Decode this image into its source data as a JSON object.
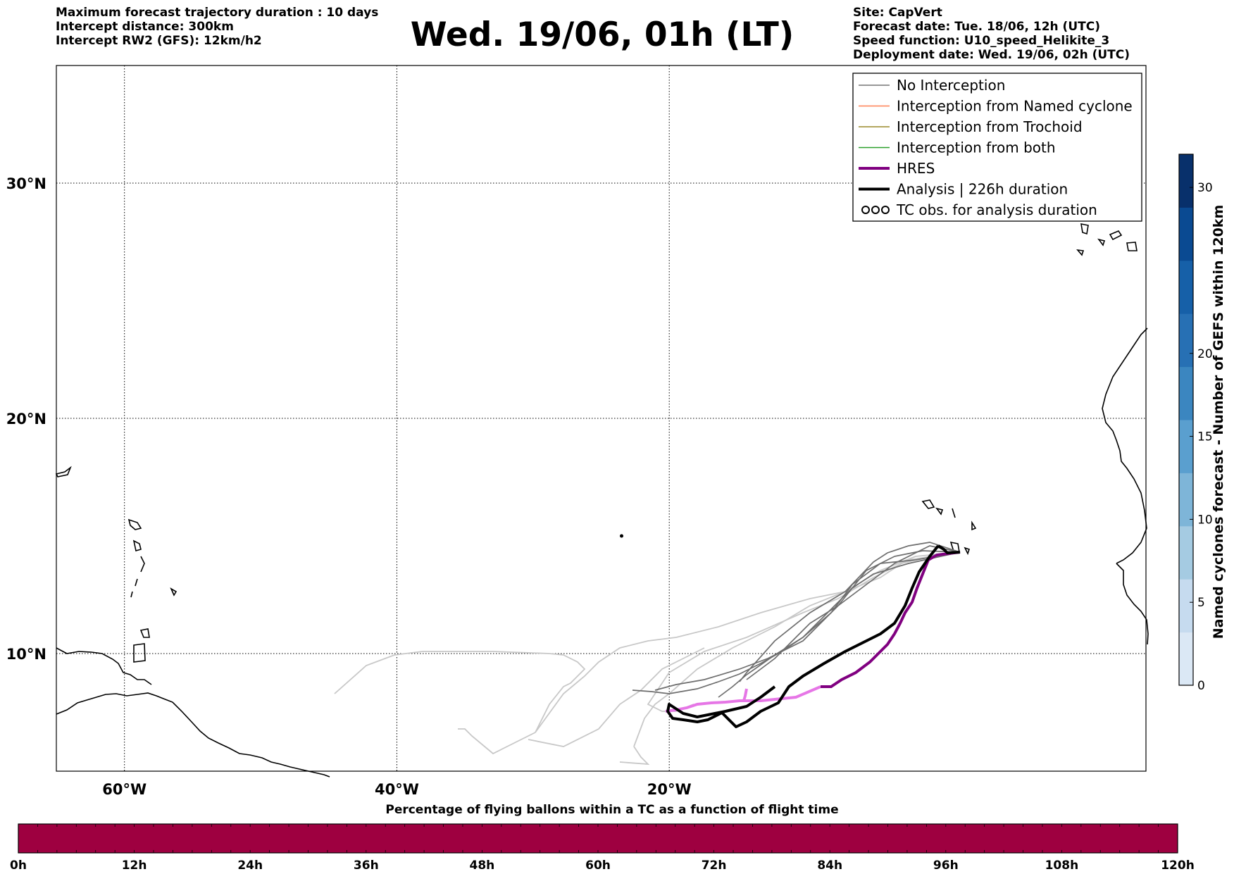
{
  "header": {
    "left": [
      "Maximum forecast trajectory duration : 10 days",
      "Intercept distance: 300km",
      "Intercept RW2 (GFS):  12km/h2"
    ],
    "title": "Wed. 19/06, 01h (LT)",
    "right": [
      "Site: CapVert",
      "Forecast date: Tue. 18/06, 12h (UTC)",
      "Speed function: U10_speed_Helikite_3",
      "Deployment date: Wed. 19/06, 02h (UTC)"
    ]
  },
  "map": {
    "lon_range": [
      -65,
      15
    ],
    "lat_range": [
      5,
      35
    ],
    "lat_ticks": [
      {
        "value": 30,
        "label": "30°N"
      },
      {
        "value": 20,
        "label": "20°N"
      },
      {
        "value": 10,
        "label": "10°N"
      }
    ],
    "lon_ticks": [
      {
        "value": -60,
        "label": "60°W"
      },
      {
        "value": -40,
        "label": "40°W"
      },
      {
        "value": -20,
        "label": "20°W"
      }
    ],
    "legend": [
      {
        "label": "No Interception",
        "color": "#777777",
        "style": "thin"
      },
      {
        "label": "Interception from Named cyclone",
        "color": "#ff7f50",
        "style": "thin"
      },
      {
        "label": "Interception from Trochoid",
        "color": "#9a8a2a",
        "style": "thin"
      },
      {
        "label": "Interception from both",
        "color": "#2ca02c",
        "style": "thin"
      },
      {
        "label": "HRES",
        "color": "#800080",
        "style": "thick"
      },
      {
        "label": "Analysis | 226h duration",
        "color": "#000000",
        "style": "thick"
      },
      {
        "label": "TC obs. for analysis duration",
        "color": "#000000",
        "style": "symbol"
      }
    ],
    "site": {
      "name": "CapVert",
      "lon": -23.5,
      "lat": 15.0
    }
  },
  "right_colorbar": {
    "label": "Named cyclones forecast - Number of GEFS within 120km",
    "ticks": [
      "0",
      "5",
      "10",
      "15",
      "20",
      "30"
    ],
    "tick_values": [
      0,
      5,
      10,
      15,
      20,
      30
    ],
    "max": 32,
    "colors": [
      "#dbe8f5",
      "#c6dbef",
      "#a5cbe2",
      "#7eb5d8",
      "#5a9fcf",
      "#3b86c0",
      "#2770b4",
      "#1660a8",
      "#0a4a92",
      "#08306b"
    ]
  },
  "bottom_colorbar": {
    "label": "Percentage of flying ballons within a TC as a function of flight time",
    "ticks": [
      "0h",
      "12h",
      "24h",
      "36h",
      "48h",
      "60h",
      "72h",
      "84h",
      "96h",
      "108h",
      "120h"
    ],
    "fill_color": "#9e0040"
  }
}
